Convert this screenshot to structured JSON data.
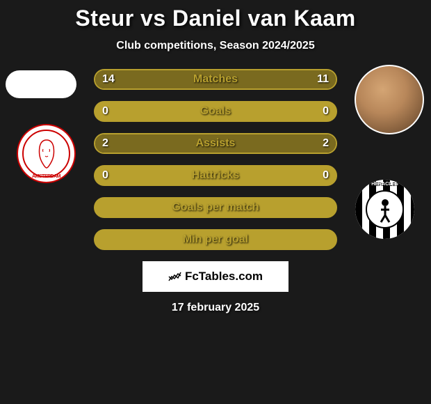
{
  "title": "Steur vs Daniel van Kaam",
  "subtitle": "Club competitions, Season 2024/2025",
  "player_left": {
    "name": "Steur",
    "club": "Ajax"
  },
  "player_right": {
    "name": "Daniel van Kaam",
    "club": "Heracles"
  },
  "stats": {
    "rows": [
      {
        "label": "Matches",
        "left": "14",
        "right": "11",
        "left_pct": 56,
        "right_pct": 44
      },
      {
        "label": "Goals",
        "left": "0",
        "right": "0",
        "left_pct": 0,
        "right_pct": 0
      },
      {
        "label": "Assists",
        "left": "2",
        "right": "2",
        "left_pct": 50,
        "right_pct": 50
      },
      {
        "label": "Hattricks",
        "left": "0",
        "right": "0",
        "left_pct": 0,
        "right_pct": 0
      },
      {
        "label": "Goals per match",
        "left": "",
        "right": "",
        "left_pct": 0,
        "right_pct": 0
      },
      {
        "label": "Min per goal",
        "left": "",
        "right": "",
        "left_pct": 0,
        "right_pct": 0
      }
    ]
  },
  "watermark": "FcTables.com",
  "date": "17 february 2025",
  "colors": {
    "background": "#1a1a1a",
    "accent": "#b8a02e",
    "accent_fill": "#7a6a1f",
    "text": "#ffffff"
  },
  "typography": {
    "title_fontsize": 32,
    "subtitle_fontsize": 16,
    "stat_fontsize": 16,
    "date_fontsize": 16
  },
  "logos": {
    "ajax_tag": "AMSTERDAM",
    "heracles_tag": "HERACLES"
  }
}
